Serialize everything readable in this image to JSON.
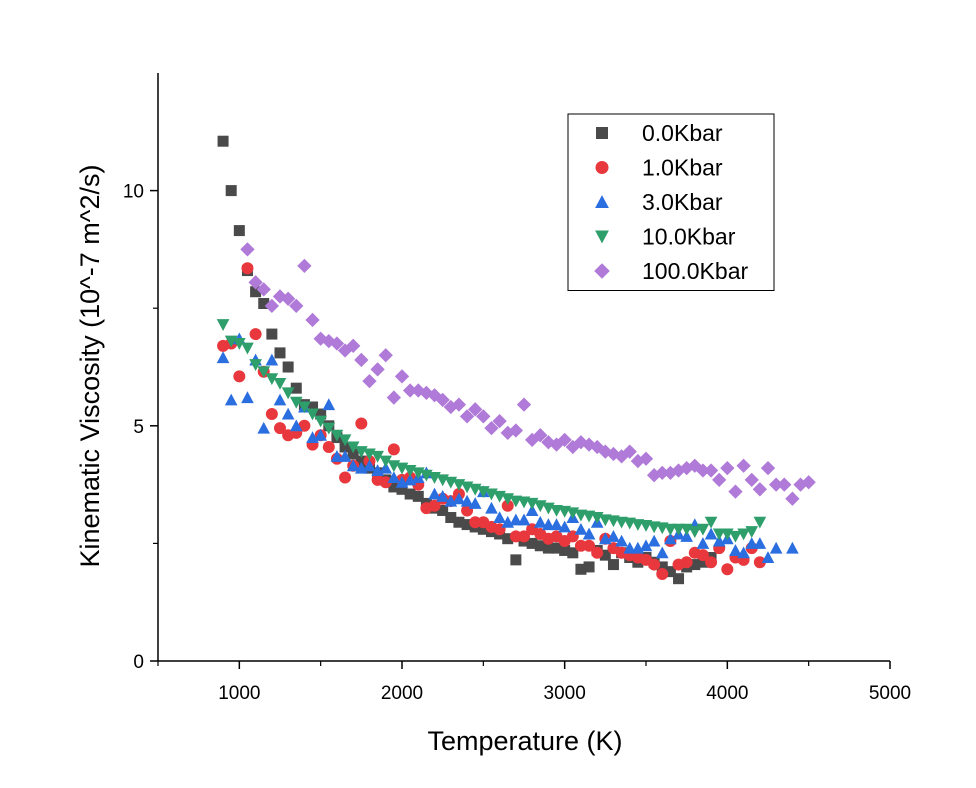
{
  "chart_data": {
    "type": "scatter",
    "title": "",
    "xlabel": "Temperature (K)",
    "ylabel": "Kinematic Viscosity (10^-7 m^2/s)",
    "xlim": [
      500,
      5000
    ],
    "ylim": [
      0,
      12.5
    ],
    "xticks": [
      1000,
      2000,
      3000,
      4000,
      5000
    ],
    "yticks": [
      0,
      5,
      10
    ],
    "grid": false,
    "legend_position": "top-right",
    "series": [
      {
        "name": "0.0Kbar",
        "marker": "square",
        "color": "#4a4a4a",
        "x": [
          900,
          950,
          1000,
          1050,
          1100,
          1150,
          1200,
          1250,
          1300,
          1350,
          1400,
          1450,
          1500,
          1550,
          1600,
          1650,
          1700,
          1750,
          1800,
          1850,
          1900,
          1950,
          2000,
          2050,
          2100,
          2150,
          2200,
          2250,
          2300,
          2350,
          2400,
          2450,
          2500,
          2550,
          2600,
          2650,
          2700,
          2750,
          2800,
          2850,
          2900,
          2950,
          3000,
          3050,
          3100,
          3150,
          3200,
          3250,
          3300,
          3350,
          3400,
          3450,
          3500,
          3550,
          3600,
          3650,
          3700,
          3750,
          3800,
          3850,
          3900
        ],
        "y": [
          11.05,
          10.0,
          9.15,
          8.3,
          7.85,
          7.6,
          6.95,
          6.55,
          6.25,
          5.8,
          5.45,
          5.4,
          5.25,
          5.0,
          4.75,
          4.55,
          4.4,
          4.25,
          4.1,
          4.0,
          3.85,
          3.7,
          3.65,
          3.55,
          3.5,
          3.35,
          3.25,
          3.2,
          3.05,
          2.95,
          2.9,
          2.85,
          2.8,
          2.75,
          2.7,
          2.6,
          2.15,
          2.55,
          2.5,
          2.45,
          2.4,
          2.4,
          2.35,
          2.3,
          1.95,
          2.0,
          2.35,
          2.25,
          2.05,
          2.3,
          2.2,
          2.1,
          2.2,
          2.1,
          2.0,
          1.9,
          1.75,
          2.0,
          2.05,
          2.1,
          2.2
        ]
      },
      {
        "name": "1.0Kbar",
        "marker": "circle",
        "color": "#e8383d",
        "x": [
          900,
          950,
          1000,
          1050,
          1100,
          1150,
          1200,
          1250,
          1300,
          1350,
          1400,
          1450,
          1500,
          1550,
          1600,
          1650,
          1700,
          1750,
          1800,
          1850,
          1900,
          1950,
          2000,
          2050,
          2100,
          2150,
          2200,
          2250,
          2300,
          2350,
          2400,
          2450,
          2500,
          2550,
          2600,
          2650,
          2700,
          2750,
          2800,
          2850,
          2900,
          2950,
          3000,
          3050,
          3100,
          3150,
          3200,
          3250,
          3300,
          3350,
          3400,
          3450,
          3500,
          3550,
          3600,
          3650,
          3700,
          3750,
          3800,
          3850,
          3900,
          3950,
          4000,
          4050,
          4100,
          4150,
          4200
        ],
        "y": [
          6.7,
          6.75,
          6.05,
          8.35,
          6.95,
          6.15,
          5.25,
          4.95,
          4.8,
          4.85,
          5.0,
          4.6,
          4.8,
          4.55,
          4.3,
          3.9,
          4.15,
          5.05,
          4.25,
          3.85,
          3.8,
          4.5,
          3.85,
          3.9,
          3.75,
          3.25,
          3.3,
          3.45,
          3.4,
          3.55,
          3.2,
          2.95,
          2.95,
          2.85,
          2.8,
          3.3,
          2.65,
          2.65,
          2.8,
          2.7,
          2.6,
          2.65,
          2.55,
          2.65,
          2.45,
          2.45,
          2.3,
          2.6,
          2.4,
          2.3,
          2.25,
          2.2,
          2.15,
          2.05,
          1.85,
          2.55,
          2.05,
          2.1,
          2.3,
          2.25,
          2.1,
          2.4,
          1.95,
          2.2,
          2.15,
          2.4,
          2.1
        ]
      },
      {
        "name": "3.0Kbar",
        "marker": "triangle-up",
        "color": "#2a6ee0",
        "x": [
          900,
          950,
          1000,
          1050,
          1100,
          1150,
          1200,
          1250,
          1300,
          1350,
          1400,
          1450,
          1500,
          1550,
          1600,
          1650,
          1700,
          1750,
          1800,
          1850,
          1900,
          1950,
          2000,
          2050,
          2100,
          2150,
          2200,
          2250,
          2300,
          2350,
          2400,
          2450,
          2500,
          2550,
          2600,
          2650,
          2700,
          2750,
          2800,
          2850,
          2900,
          2950,
          3000,
          3050,
          3100,
          3150,
          3200,
          3250,
          3300,
          3350,
          3400,
          3450,
          3500,
          3550,
          3600,
          3650,
          3700,
          3750,
          3800,
          3850,
          3900,
          3950,
          4000,
          4050,
          4100,
          4150,
          4200,
          4250,
          4300,
          4400
        ],
        "y": [
          6.45,
          5.55,
          6.85,
          5.6,
          6.4,
          4.95,
          6.4,
          5.55,
          5.25,
          5.0,
          5.4,
          4.75,
          4.8,
          5.45,
          4.35,
          4.35,
          4.15,
          4.1,
          4.15,
          4.05,
          4.1,
          3.9,
          3.8,
          3.85,
          3.9,
          4.0,
          3.55,
          3.5,
          3.4,
          3.45,
          3.4,
          3.35,
          3.6,
          3.25,
          3.05,
          2.95,
          3.0,
          3.0,
          3.2,
          2.95,
          2.9,
          2.9,
          2.85,
          3.05,
          2.8,
          2.7,
          2.95,
          2.6,
          2.65,
          2.55,
          2.4,
          2.4,
          2.45,
          2.55,
          2.3,
          2.6,
          2.7,
          2.65,
          2.9,
          2.5,
          2.7,
          2.55,
          2.6,
          2.35,
          2.3,
          2.5,
          2.5,
          2.2,
          2.4,
          2.4
        ]
      },
      {
        "name": "10.0Kbar",
        "marker": "triangle-down",
        "color": "#2e9e6b",
        "x": [
          900,
          950,
          1000,
          1050,
          1100,
          1150,
          1200,
          1250,
          1300,
          1350,
          1400,
          1450,
          1500,
          1550,
          1600,
          1650,
          1700,
          1750,
          1800,
          1850,
          1900,
          1950,
          2000,
          2050,
          2100,
          2150,
          2200,
          2250,
          2300,
          2350,
          2400,
          2450,
          2500,
          2550,
          2600,
          2650,
          2700,
          2750,
          2800,
          2850,
          2900,
          2950,
          3000,
          3050,
          3100,
          3150,
          3200,
          3250,
          3300,
          3350,
          3400,
          3450,
          3500,
          3550,
          3600,
          3650,
          3700,
          3750,
          3800,
          3850,
          3900,
          3950,
          4000,
          4050,
          4100,
          4150,
          4200
        ],
        "y": [
          7.15,
          6.8,
          6.75,
          6.65,
          6.3,
          6.15,
          6.0,
          5.9,
          5.7,
          5.5,
          5.4,
          5.25,
          5.1,
          4.95,
          4.8,
          4.7,
          4.55,
          4.45,
          4.4,
          4.35,
          4.25,
          4.15,
          4.1,
          4.05,
          4.0,
          3.95,
          3.9,
          3.85,
          3.8,
          3.75,
          3.7,
          3.65,
          3.6,
          3.55,
          3.5,
          3.45,
          3.4,
          3.38,
          3.35,
          3.3,
          3.25,
          3.2,
          3.18,
          3.15,
          3.1,
          3.08,
          3.05,
          3.0,
          2.98,
          2.95,
          2.93,
          2.9,
          2.88,
          2.85,
          2.83,
          2.8,
          2.8,
          2.8,
          2.75,
          2.8,
          2.95,
          2.7,
          2.7,
          2.65,
          2.7,
          2.75,
          2.95
        ]
      },
      {
        "name": "100.0Kbar",
        "marker": "diamond",
        "color": "#b07ad8",
        "x": [
          1050,
          1100,
          1150,
          1200,
          1250,
          1300,
          1350,
          1400,
          1450,
          1500,
          1550,
          1600,
          1650,
          1700,
          1750,
          1800,
          1850,
          1900,
          1950,
          2000,
          2050,
          2100,
          2150,
          2200,
          2250,
          2300,
          2350,
          2400,
          2450,
          2500,
          2550,
          2600,
          2650,
          2700,
          2750,
          2800,
          2850,
          2900,
          2950,
          3000,
          3050,
          3100,
          3150,
          3200,
          3250,
          3300,
          3350,
          3400,
          3450,
          3500,
          3550,
          3600,
          3650,
          3700,
          3750,
          3800,
          3850,
          3900,
          3950,
          4000,
          4050,
          4100,
          4150,
          4200,
          4250,
          4300,
          4350,
          4400,
          4450,
          4500
        ],
        "y": [
          8.75,
          8.05,
          7.9,
          7.55,
          7.75,
          7.7,
          7.55,
          8.4,
          7.25,
          6.85,
          6.8,
          6.75,
          6.6,
          6.7,
          6.4,
          5.95,
          6.2,
          6.5,
          5.6,
          6.05,
          5.75,
          5.75,
          5.7,
          5.65,
          5.55,
          5.4,
          5.45,
          5.2,
          5.35,
          5.2,
          4.95,
          5.1,
          4.85,
          4.9,
          5.45,
          4.7,
          4.8,
          4.65,
          4.6,
          4.7,
          4.55,
          4.65,
          4.6,
          4.55,
          4.45,
          4.4,
          4.35,
          4.45,
          4.25,
          4.3,
          3.95,
          4.0,
          4.0,
          4.05,
          4.1,
          4.15,
          4.05,
          4.05,
          3.85,
          4.1,
          3.6,
          4.15,
          3.85,
          3.65,
          4.1,
          3.75,
          3.75,
          3.45,
          3.75,
          3.8
        ]
      }
    ]
  }
}
